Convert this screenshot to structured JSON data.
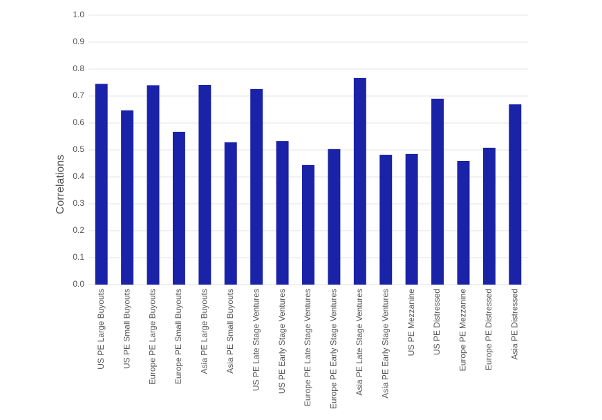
{
  "chart_data": {
    "type": "bar",
    "y_label": "Correlations",
    "categories": [
      "US PE Large Buyouts",
      "US PE Small Buyouts",
      "Europe PE Large Buyouts",
      "Europe PE Small Buyouts",
      "Asia PE Large Buyouts",
      "Asia PE Small Buyouts",
      "US PE Late Stage Ventures",
      "US PE Early Stage Ventures",
      "Europe PE Late Stage Ventures",
      "Europe PE Early Stage Ventures",
      "Asia PE Late Stage Ventures",
      "Asia PE Early Stage Ventures",
      "US PE Mezzanine",
      "US PE Distressed",
      "Europe PE Mezzanine",
      "Europe PE Distressed",
      "Asia PE Distressed"
    ],
    "values": [
      0.745,
      0.647,
      0.74,
      0.567,
      0.741,
      0.528,
      0.726,
      0.533,
      0.444,
      0.503,
      0.767,
      0.482,
      0.485,
      0.69,
      0.459,
      0.508,
      0.669
    ],
    "color": "#1a22a8",
    "ylim": [
      0,
      1
    ],
    "yticks": [
      {
        "value": 0,
        "label": "0.0"
      },
      0.1,
      0.2,
      0.3,
      0.4,
      0.5,
      0.6,
      0.7,
      0.8,
      0.9,
      {
        "value": 1,
        "label": "1.0"
      }
    ],
    "grid": true
  }
}
